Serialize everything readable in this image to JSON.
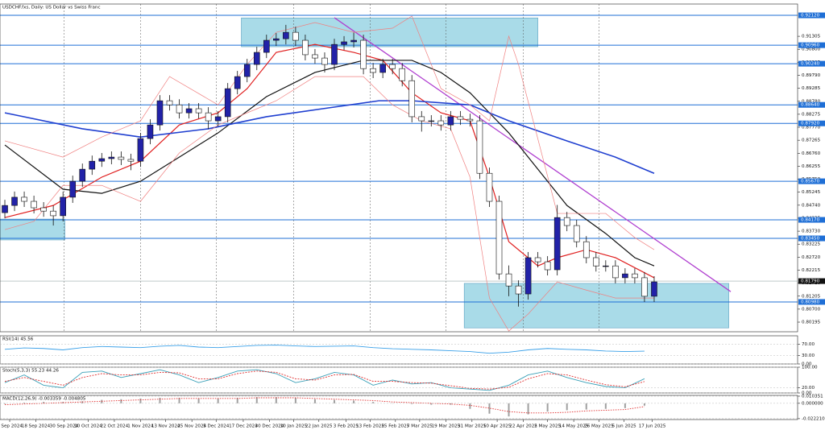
{
  "chart_data": [
    {
      "type": "candlestick",
      "title": "USDCHF.fxs, Daily: US Dollar vs Swiss Franc",
      "xlim": [
        -0.5,
        81.8
      ],
      "ylim": [
        0.7982,
        0.9256
      ],
      "yticks": [
        0.80195,
        {
          "value": 0.807,
          "label": "0.80700"
        },
        0.81205,
        {
          "value": 0.8171,
          "label": "0.81710"
        },
        0.82215,
        {
          "value": 0.8272,
          "label": "0.82720"
        },
        0.83225,
        {
          "value": 0.8373,
          "label": "0.83730"
        },
        0.84235,
        {
          "value": 0.8474,
          "label": "0.84740"
        },
        0.85245,
        {
          "value": 0.8575,
          "label": "0.85750"
        },
        0.86255,
        {
          "value": 0.8676,
          "label": "0.86760"
        },
        0.87265,
        {
          "value": 0.8777,
          "label": "0.87770"
        },
        0.88275,
        {
          "value": 0.8878,
          "label": "0.88780"
        },
        0.89285,
        {
          "value": 0.8979,
          "label": "0.89790"
        },
        0.90295,
        {
          "value": 0.908,
          "label": "0.90800"
        },
        0.91305
      ],
      "xticks": [
        {
          "value": 0.5,
          "label": "4 Sep 2024"
        },
        {
          "value": 3.2,
          "label": "18 Sep 2024"
        },
        {
          "value": 6.1,
          "label": "30 Sep 2024"
        },
        {
          "value": 8.6,
          "label": "10 Oct 2024"
        },
        {
          "value": 11.3,
          "label": "22 Oct 2024"
        },
        {
          "value": 14,
          "label": "1 Nov 2024"
        },
        {
          "value": 16.6,
          "label": "13 Nov 2024"
        },
        {
          "value": 19.3,
          "label": "25 Nov 2024"
        },
        {
          "value": 21.8,
          "label": "5 Dec 2024"
        },
        {
          "value": 24.6,
          "label": "17 Dec 2024"
        },
        {
          "value": 27.3,
          "label": "30 Dec 2024"
        },
        {
          "value": 29.8,
          "label": "10 Jan 2025"
        },
        {
          "value": 32.4,
          "label": "22 Jan 2025"
        },
        {
          "value": 35.2,
          "label": "3 Feb 2025"
        },
        {
          "value": 37.7,
          "label": "13 Feb 2025"
        },
        {
          "value": 40.3,
          "label": "25 Feb 2025"
        },
        {
          "value": 42.8,
          "label": "7 Mar 2025"
        },
        {
          "value": 45.5,
          "label": "19 Mar 2025"
        },
        {
          "value": 48.2,
          "label": "31 Mar 2025"
        },
        {
          "value": 50.8,
          "label": "10 Apr 2025"
        },
        {
          "value": 53.5,
          "label": "22 Apr 2025"
        },
        {
          "value": 56,
          "label": "2 May 2025"
        },
        {
          "value": 58.7,
          "label": "14 May 2025"
        },
        {
          "value": 61.3,
          "label": "26 May 2025"
        },
        {
          "value": 63.9,
          "label": "5 Jun 2025"
        },
        {
          "value": 66.8,
          "label": "17 Jun 2025"
        }
      ],
      "grid": true,
      "up_color": "#2222a8",
      "down_color": "#ffffff",
      "candles": {
        "open": [
          0.8445,
          0.8473,
          0.8505,
          0.8489,
          0.8464,
          0.8451,
          0.8433,
          0.8505,
          0.8567,
          0.8614,
          0.8645,
          0.8655,
          0.8661,
          0.8652,
          0.8645,
          0.8733,
          0.8786,
          0.888,
          0.8864,
          0.8833,
          0.8849,
          0.8833,
          0.8802,
          0.8818,
          0.8927,
          0.8974,
          0.9021,
          0.9068,
          0.9115,
          0.9121,
          0.9146,
          0.9115,
          0.9059,
          0.9046,
          0.9021,
          0.9099,
          0.9109,
          0.9115,
          0.9005,
          0.899,
          0.9021,
          0.9005,
          0.8958,
          0.8818,
          0.8802,
          0.8802,
          0.8786,
          0.8818,
          0.8808,
          0.8802,
          0.8598,
          0.8489,
          0.8207,
          0.816,
          0.8129,
          0.827,
          0.8254,
          0.8223,
          0.8426,
          0.8395,
          0.8332,
          0.827,
          0.8238,
          0.8238,
          0.8192,
          0.8207,
          0.8192,
          0.812
        ],
        "high": [
          0.8495,
          0.8527,
          0.8527,
          0.8511,
          0.8486,
          0.8473,
          0.8527,
          0.8589,
          0.8636,
          0.8667,
          0.8677,
          0.8683,
          0.8683,
          0.8674,
          0.8755,
          0.8808,
          0.8902,
          0.8902,
          0.8886,
          0.8871,
          0.8871,
          0.8855,
          0.884,
          0.8949,
          0.8996,
          0.9043,
          0.909,
          0.9137,
          0.9143,
          0.9175,
          0.9168,
          0.9137,
          0.9081,
          0.9068,
          0.9121,
          0.9131,
          0.9145,
          0.9137,
          0.9027,
          0.9043,
          0.9043,
          0.9027,
          0.898,
          0.884,
          0.8824,
          0.8824,
          0.884,
          0.884,
          0.883,
          0.8824,
          0.862,
          0.8511,
          0.824,
          0.8182,
          0.8292,
          0.8292,
          0.8276,
          0.8475,
          0.8448,
          0.8417,
          0.8354,
          0.8292,
          0.826,
          0.826,
          0.8229,
          0.8229,
          0.8214,
          0.8198
        ],
        "low": [
          0.8423,
          0.8451,
          0.8467,
          0.8442,
          0.8429,
          0.8395,
          0.8411,
          0.8483,
          0.8545,
          0.8592,
          0.8623,
          0.8633,
          0.863,
          0.861,
          0.8623,
          0.8711,
          0.8764,
          0.8842,
          0.8811,
          0.8811,
          0.8811,
          0.877,
          0.878,
          0.8796,
          0.8905,
          0.8952,
          0.8999,
          0.9046,
          0.9093,
          0.9099,
          0.9093,
          0.9037,
          0.9024,
          0.899,
          0.8999,
          0.9077,
          0.9087,
          0.8983,
          0.8968,
          0.8968,
          0.8983,
          0.8936,
          0.8796,
          0.876,
          0.878,
          0.8764,
          0.8764,
          0.8786,
          0.878,
          0.8576,
          0.8467,
          0.8185,
          0.812,
          0.808,
          0.8107,
          0.8232,
          0.8201,
          0.8201,
          0.8373,
          0.831,
          0.8248,
          0.8216,
          0.8216,
          0.817,
          0.817,
          0.817,
          0.8098,
          0.8098
        ],
        "close": [
          0.8473,
          0.8505,
          0.8489,
          0.8464,
          0.8451,
          0.8433,
          0.8505,
          0.8567,
          0.8614,
          0.8645,
          0.8655,
          0.8661,
          0.8652,
          0.8645,
          0.8733,
          0.8786,
          0.888,
          0.8864,
          0.8833,
          0.8849,
          0.8833,
          0.8802,
          0.8818,
          0.8927,
          0.8974,
          0.9021,
          0.9068,
          0.9115,
          0.9121,
          0.9146,
          0.9115,
          0.9059,
          0.9046,
          0.9021,
          0.9099,
          0.9109,
          0.9115,
          0.9005,
          0.899,
          0.9021,
          0.9005,
          0.8958,
          0.8818,
          0.8802,
          0.8802,
          0.8786,
          0.8818,
          0.8808,
          0.8802,
          0.8598,
          0.8489,
          0.8207,
          0.816,
          0.8129,
          0.827,
          0.8254,
          0.8223,
          0.8426,
          0.8395,
          0.8332,
          0.827,
          0.8238,
          0.8238,
          0.8192,
          0.8207,
          0.8192,
          0.812,
          0.8176
        ]
      },
      "level_color": "#1f6fd6",
      "levels": [
        {
          "value": 0.9212,
          "label": "0.92120"
        },
        {
          "value": 0.9096,
          "label": "0.90960"
        },
        {
          "value": 0.9024,
          "label": "0.90240"
        },
        {
          "value": 0.8864,
          "label": "0.88640"
        },
        {
          "value": 0.8792,
          "label": "0.87920"
        },
        {
          "value": 0.8567,
          "label": "0.85670"
        },
        {
          "value": 0.8417,
          "label": "0.84170"
        },
        {
          "value": 0.8345,
          "label": "0.83450"
        },
        {
          "value": 0.8098,
          "label": "0.80980"
        }
      ],
      "last_price": {
        "value": 0.8179,
        "label": "0.81790"
      },
      "zone_color": "#a9dbe8",
      "zones": [
        {
          "x": [
            24.4,
            55
          ],
          "y": [
            0.909,
            0.9202
          ]
        },
        {
          "x": [
            -0.5,
            6.2
          ],
          "y": [
            0.8339,
            0.842
          ]
        },
        {
          "x": [
            47.4,
            74.7
          ],
          "y": [
            0.7997,
            0.817
          ]
        }
      ],
      "trendline": {
        "x": [
          34,
          74.9
        ],
        "y": [
          0.9203,
          0.8138
        ],
        "color": "#b040d0"
      },
      "series": [
        {
          "color": "#e02020",
          "width": 1.2,
          "x": [
            0,
            5,
            10,
            14,
            18,
            22,
            25,
            28,
            32,
            36,
            39,
            42,
            45,
            48,
            50,
            52,
            55,
            57,
            60,
            63,
            67
          ],
          "values": [
            0.8426,
            0.8473,
            0.8583,
            0.8645,
            0.8786,
            0.8833,
            0.8927,
            0.9068,
            0.9099,
            0.9068,
            0.9037,
            0.8911,
            0.8833,
            0.8802,
            0.8583,
            0.8332,
            0.8238,
            0.827,
            0.8301,
            0.827,
            0.8192
          ]
        },
        {
          "color": "#111111",
          "width": 1.2,
          "x": [
            0,
            6,
            10,
            14,
            18,
            22,
            27,
            32,
            37,
            42,
            45,
            48,
            52,
            55,
            58,
            62,
            65,
            67
          ],
          "values": [
            0.8708,
            0.8536,
            0.852,
            0.8567,
            0.8661,
            0.8755,
            0.8896,
            0.899,
            0.9037,
            0.9037,
            0.899,
            0.8911,
            0.8755,
            0.8614,
            0.8473,
            0.8364,
            0.827,
            0.8238
          ]
        },
        {
          "color": "#1f3fd0",
          "width": 1.6,
          "x": [
            0,
            8,
            14,
            21,
            27,
            32.8,
            38.6,
            42,
            48,
            52,
            58,
            63,
            67
          ],
          "values": [
            0.8833,
            0.8771,
            0.8739,
            0.8771,
            0.8818,
            0.8849,
            0.888,
            0.888,
            0.8864,
            0.8802,
            0.8724,
            0.8661,
            0.8598
          ]
        },
        {
          "color": "#f08080",
          "width": 0.7,
          "x": [
            0,
            6,
            10,
            14,
            17,
            22,
            25,
            28,
            32,
            36,
            40,
            42,
            45,
            48,
            50,
            52,
            53,
            57,
            62,
            65,
            67
          ],
          "values": [
            0.8724,
            0.8661,
            0.8739,
            0.8802,
            0.8974,
            0.8864,
            0.9021,
            0.9146,
            0.9184,
            0.9146,
            0.9162,
            0.9209,
            0.8927,
            0.8864,
            0.8802,
            0.9131,
            0.9021,
            0.8442,
            0.8442,
            0.8348,
            0.8301
          ]
        },
        {
          "color": "#f08080",
          "width": 0.7,
          "x": [
            0,
            3,
            6,
            10,
            14,
            18,
            22,
            25,
            28,
            32,
            37,
            40,
            43,
            46,
            48,
            50,
            52,
            54,
            57,
            60,
            63,
            67
          ],
          "values": [
            0.8379,
            0.8411,
            0.8551,
            0.8551,
            0.8489,
            0.8677,
            0.8786,
            0.8833,
            0.888,
            0.8974,
            0.8974,
            0.8864,
            0.8802,
            0.8771,
            0.8583,
            0.8113,
            0.7985,
            0.8051,
            0.8176,
            0.8144,
            0.8113,
            0.8113
          ]
        }
      ]
    },
    {
      "type": "line",
      "title": "RSI(14) 45.56",
      "ylim": [
        0,
        100
      ],
      "yticks": [
        {
          "value": 70,
          "label": "70.00"
        },
        {
          "value": 30,
          "label": "30.00"
        },
        {
          "value": 0,
          "label": "0.00"
        }
      ],
      "x": [
        0,
        2,
        4,
        6,
        8,
        10,
        12,
        14,
        16,
        18,
        20,
        22,
        24,
        26,
        28,
        30,
        32,
        34,
        36,
        38,
        40,
        42,
        44,
        46,
        48,
        50,
        52,
        54,
        56,
        58,
        60,
        62,
        64,
        66
      ],
      "series": [
        {
          "color": "#3aa0e8",
          "values": [
            52,
            57,
            55,
            50,
            58,
            62,
            60,
            58,
            63,
            66,
            60,
            58,
            62,
            66,
            67,
            64,
            62,
            63,
            64,
            58,
            54,
            52,
            50,
            47,
            44,
            38,
            42,
            50,
            55,
            52,
            50,
            46,
            44,
            45.56
          ]
        }
      ]
    },
    {
      "type": "line",
      "title": "Stoch(5,3,3) 55.23 44.26",
      "ylim": [
        0,
        100
      ],
      "yticks": [
        {
          "value": 100,
          "label": "100.00"
        },
        {
          "value": 20,
          "label": "20.00"
        },
        {
          "value": 0,
          "label": "0.00"
        }
      ],
      "x": [
        0,
        2,
        4,
        6,
        8,
        10,
        12,
        14,
        16,
        18,
        20,
        22,
        24,
        26,
        28,
        30,
        32,
        34,
        36,
        38,
        40,
        42,
        44,
        46,
        48,
        50,
        52,
        54,
        56,
        58,
        60,
        62,
        64,
        66
      ],
      "series": [
        {
          "color": "#3aa0b8",
          "values": [
            40,
            70,
            30,
            20,
            80,
            85,
            60,
            75,
            90,
            70,
            40,
            60,
            85,
            90,
            75,
            40,
            55,
            80,
            70,
            30,
            50,
            35,
            40,
            20,
            15,
            10,
            30,
            70,
            85,
            60,
            40,
            25,
            20,
            55.23
          ]
        },
        {
          "color": "#e03030",
          "dash": true,
          "values": [
            45,
            60,
            45,
            30,
            60,
            75,
            70,
            70,
            80,
            78,
            55,
            55,
            75,
            85,
            80,
            55,
            50,
            70,
            72,
            45,
            45,
            40,
            38,
            28,
            18,
            15,
            22,
            55,
            75,
            70,
            50,
            32,
            24,
            44.26
          ]
        }
      ]
    },
    {
      "type": "macd",
      "title": "MACD(12,26,9) -0.003359 -0.004805",
      "ylim": [
        -0.0235,
        0.0115
      ],
      "yticks": [
        0.010351,
        {
          "value": 0,
          "label": "0.000000"
        },
        {
          "value": -0.02221,
          "label": "-0.022210"
        }
      ],
      "x": [
        0,
        2,
        4,
        6,
        8,
        10,
        12,
        14,
        16,
        18,
        20,
        22,
        24,
        26,
        28,
        30,
        32,
        34,
        36,
        38,
        40,
        42,
        44,
        46,
        48,
        50,
        52,
        54,
        56,
        58,
        60,
        62,
        64,
        66
      ],
      "series": [
        {
          "kind": "bar",
          "color": "#a0a0a0",
          "values": [
            -0.001,
            0.001,
            0.002,
            0.002,
            0.003,
            0.005,
            0.006,
            0.007,
            0.008,
            0.008,
            0.007,
            0.007,
            0.008,
            0.009,
            0.009,
            0.008,
            0.006,
            0.005,
            0.004,
            0.002,
            0,
            -0.001,
            -0.002,
            -0.002,
            -0.008,
            -0.015,
            -0.019,
            -0.016,
            -0.012,
            -0.01,
            -0.009,
            -0.008,
            -0.007,
            -0.003359
          ]
        },
        {
          "kind": "line",
          "dash": true,
          "color": "#e03030",
          "values": [
            -0.002,
            -0.001,
            0,
            0.001,
            0.002,
            0.003,
            0.004,
            0.005,
            0.006,
            0.007,
            0.007,
            0.007,
            0.007,
            0.008,
            0.008,
            0.008,
            0.007,
            0.006,
            0.005,
            0.004,
            0.002,
            0.001,
            0,
            -0.001,
            -0.003,
            -0.007,
            -0.012,
            -0.014,
            -0.014,
            -0.013,
            -0.011,
            -0.01,
            -0.009,
            -0.004805
          ]
        }
      ]
    }
  ]
}
